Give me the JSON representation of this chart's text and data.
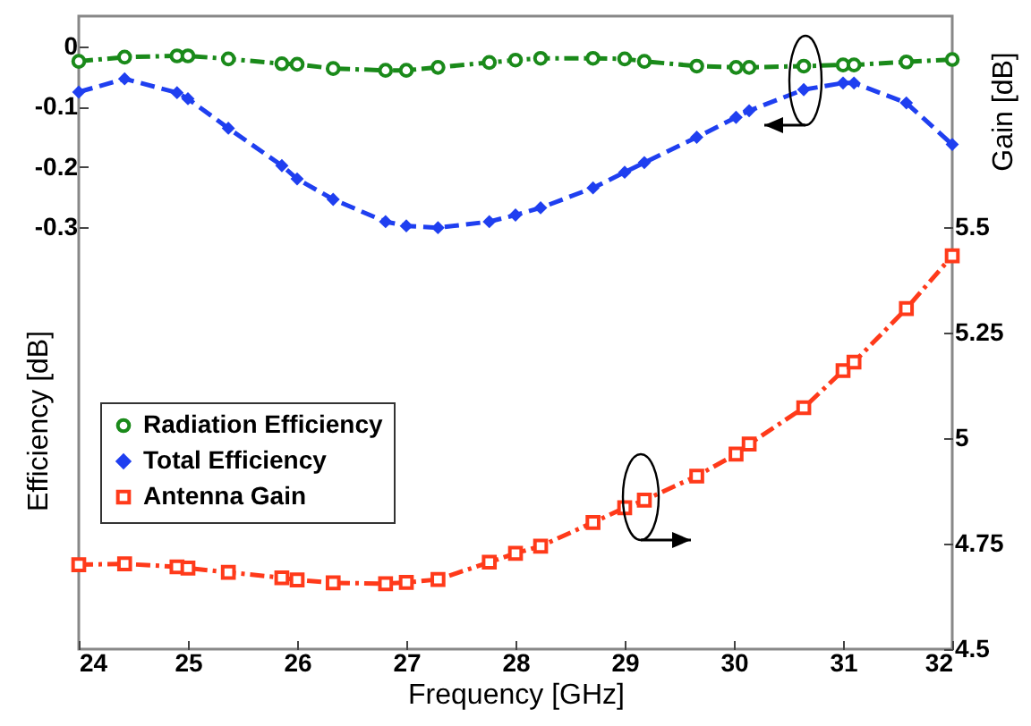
{
  "chart_data": {
    "type": "line",
    "xlabel": "Frequency [GHz]",
    "ylabel": "Efficiency [dB]",
    "y2label": "Gain [dB]",
    "xlim": [
      24,
      32
    ],
    "xticks": [
      24,
      25,
      26,
      27,
      28,
      29,
      30,
      31,
      32
    ],
    "ylim": [
      -1.0,
      0.05
    ],
    "yticks": [
      0,
      -0.1,
      -0.2,
      -0.3
    ],
    "y2lim": [
      4.5,
      6.0
    ],
    "y2ticks": [
      4.5,
      4.75,
      5,
      5.25,
      5.5
    ],
    "grid": false,
    "legend": "left",
    "x": [
      24,
      24.42,
      24.9,
      25.0,
      25.37,
      25.86,
      26.0,
      26.33,
      26.81,
      27.0,
      27.29,
      27.76,
      28.0,
      28.23,
      28.71,
      29.0,
      29.18,
      29.66,
      30.02,
      30.14,
      30.64,
      31.0,
      31.1,
      31.58,
      32.0
    ],
    "series": [
      {
        "name": "Radiation Efficiency",
        "color": "#1a8a1a",
        "marker": "circle",
        "line_style": "dashdot",
        "values": [
          -0.025,
          -0.018,
          -0.016,
          -0.016,
          -0.021,
          -0.029,
          -0.03,
          -0.037,
          -0.04,
          -0.04,
          -0.035,
          -0.027,
          -0.023,
          -0.02,
          -0.02,
          -0.021,
          -0.025,
          -0.033,
          -0.035,
          -0.035,
          -0.033,
          -0.031,
          -0.031,
          -0.026,
          -0.022
        ]
      },
      {
        "name": "Total Efficiency",
        "color": "#1f3ff0",
        "marker": "diamond",
        "line_style": "dashed",
        "values": [
          -0.076,
          -0.054,
          -0.077,
          -0.087,
          -0.136,
          -0.198,
          -0.22,
          -0.254,
          -0.291,
          -0.298,
          -0.301,
          -0.291,
          -0.28,
          -0.268,
          -0.235,
          -0.209,
          -0.193,
          -0.151,
          -0.118,
          -0.107,
          -0.072,
          -0.061,
          -0.061,
          -0.094,
          -0.163
        ]
      },
      {
        "name": "Antenna Gain",
        "color": "#ff3a1a",
        "marker": "square",
        "line_style": "dashdot",
        "axis": "y2",
        "values": [
          4.7,
          4.702,
          4.695,
          4.692,
          4.682,
          4.669,
          4.664,
          4.657,
          4.655,
          4.658,
          4.665,
          4.706,
          4.727,
          4.744,
          4.8,
          4.835,
          4.853,
          4.91,
          4.962,
          4.986,
          5.072,
          5.16,
          5.18,
          5.307,
          5.432
        ]
      }
    ]
  }
}
